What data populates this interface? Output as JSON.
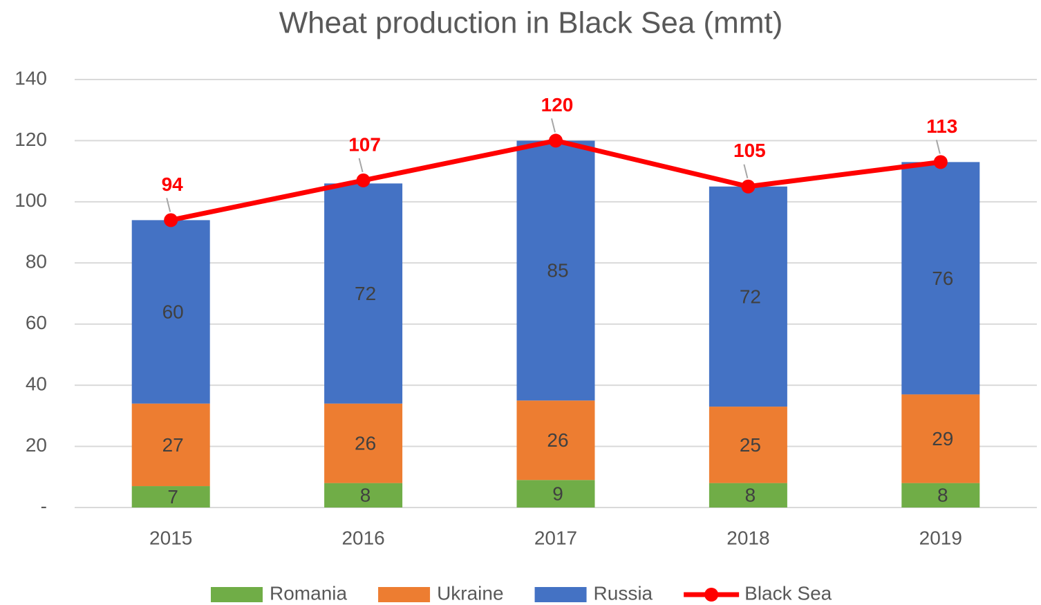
{
  "chart_data": {
    "type": "bar",
    "stacked": true,
    "title": "Wheat production in Black Sea (mmt)",
    "categories": [
      "2015",
      "2016",
      "2017",
      "2018",
      "2019"
    ],
    "series": [
      {
        "name": "Romania",
        "color": "#70ad47",
        "values": [
          7,
          8,
          9,
          8,
          8
        ]
      },
      {
        "name": "Ukraine",
        "color": "#ed7d31",
        "values": [
          27,
          26,
          26,
          25,
          29
        ]
      },
      {
        "name": "Russia",
        "color": "#4472c4",
        "values": [
          60,
          72,
          85,
          72,
          76
        ]
      },
      {
        "name": "Black Sea",
        "type": "line",
        "color": "#ff0000",
        "values": [
          94,
          107,
          120,
          105,
          113
        ]
      }
    ],
    "ylim": [
      0,
      140
    ],
    "yticks": [
      {
        "value": 0,
        "label": "-"
      },
      20,
      40,
      60,
      80,
      100,
      120,
      140
    ],
    "grid": true,
    "legend": "bottom"
  }
}
